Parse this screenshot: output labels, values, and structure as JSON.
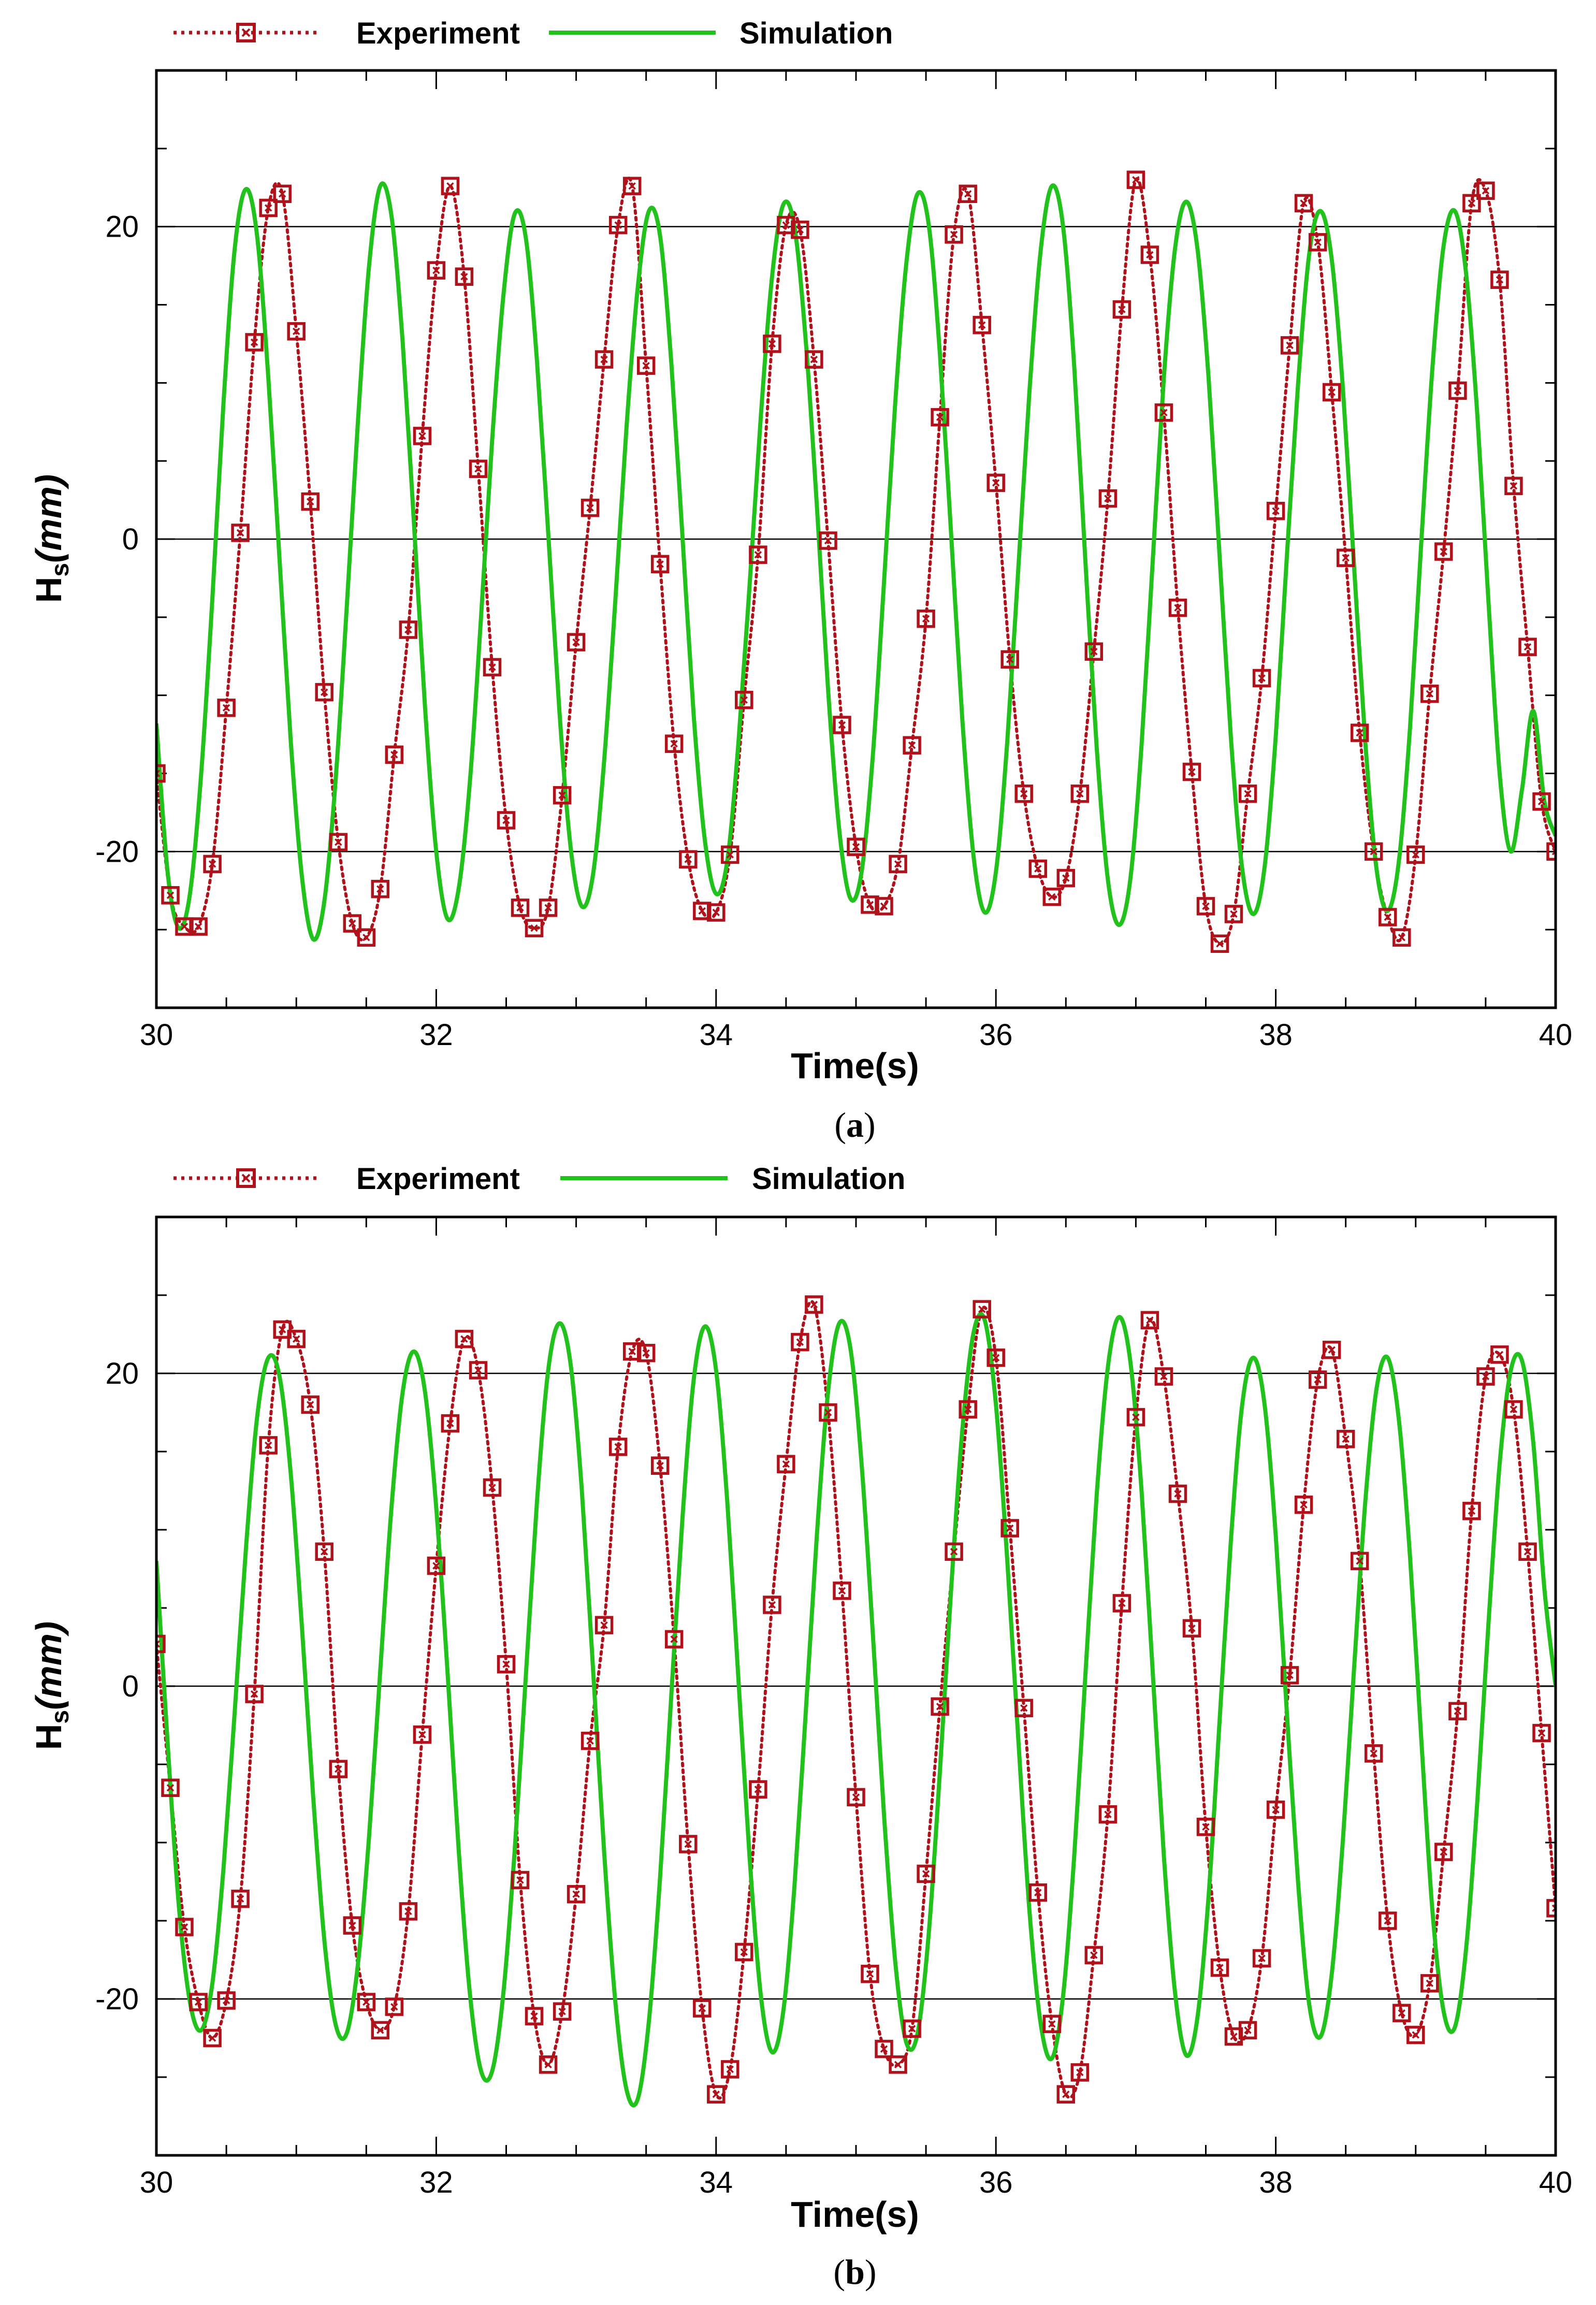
{
  "colors": {
    "experiment": "#b0121b",
    "simulation": "#22c21c",
    "axis": "#000000",
    "grid": "#000000"
  },
  "legend": {
    "experiment_label": "Experiment",
    "simulation_label": "Simulation",
    "experiment_marker": "open-square-with-cross",
    "experiment_line": "dotted",
    "simulation_line": "solid"
  },
  "chart_data": [
    {
      "type": "line",
      "caption_letter": "a",
      "xlabel": "Time(s)",
      "ylabel_main": "H",
      "ylabel_sub": "s",
      "ylabel_rest": "(mm)",
      "xlim": [
        30,
        40
      ],
      "ylim": [
        -30,
        30
      ],
      "xticks": [
        30,
        32,
        34,
        36,
        38,
        40
      ],
      "yticks": [
        -20,
        0,
        20
      ],
      "xtick_labels": [
        "30",
        "32",
        "34",
        "36",
        "38",
        "40"
      ],
      "ytick_labels": [
        "-20",
        "0",
        "20"
      ],
      "grid_y": [
        -20,
        0,
        20
      ],
      "series": [
        {
          "name": "Experiment",
          "style": "dotted-markers",
          "x": [
            30.0,
            30.1,
            30.2,
            30.3,
            30.4,
            30.5,
            30.6,
            30.7,
            30.8,
            30.9,
            31.0,
            31.1,
            31.2,
            31.3,
            31.4,
            31.5,
            31.6,
            31.7,
            31.8,
            31.9,
            32.0,
            32.1,
            32.2,
            32.3,
            32.4,
            32.5,
            32.6,
            32.7,
            32.8,
            32.9,
            33.0,
            33.1,
            33.2,
            33.3,
            33.4,
            33.5,
            33.6,
            33.7,
            33.8,
            33.9,
            34.0,
            34.1,
            34.2,
            34.3,
            34.4,
            34.5,
            34.6,
            34.7,
            34.8,
            34.9,
            35.0,
            35.1,
            35.2,
            35.3,
            35.4,
            35.5,
            35.6,
            35.7,
            35.8,
            35.9,
            36.0,
            36.1,
            36.2,
            36.3,
            36.4,
            36.5,
            36.6,
            36.7,
            36.8,
            36.9,
            37.0,
            37.1,
            37.2,
            37.3,
            37.4,
            37.5,
            37.6,
            37.7,
            37.8,
            37.9,
            38.0,
            38.1,
            38.2,
            38.3,
            38.4,
            38.5,
            38.6,
            38.7,
            38.8,
            38.9,
            39.0,
            39.1,
            39.2,
            39.3,
            39.4,
            39.5,
            39.6,
            39.7,
            39.8,
            39.9,
            40.0
          ],
          "y": [
            -15,
            -22.8,
            -24.8,
            -24.8,
            -20.8,
            -10.8,
            0.4,
            12.6,
            21.2,
            22.1,
            13.3,
            2.4,
            -9.8,
            -19.4,
            -24.6,
            -25.5,
            -22.4,
            -13.8,
            -5.8,
            6.6,
            17.2,
            22.6,
            16.8,
            4.5,
            -8.2,
            -18,
            -23.6,
            -24.9,
            -23.6,
            -16.4,
            -6.6,
            2,
            11.5,
            20.1,
            22.6,
            11.1,
            -1.6,
            -13.1,
            -20.5,
            -23.8,
            -23.9,
            -20.2,
            -10.3,
            -1,
            12.5,
            20.1,
            19.8,
            11.5,
            -0.1,
            -11.9,
            -19.7,
            -23.4,
            -23.5,
            -20.8,
            -13.2,
            -5.1,
            7.8,
            19.5,
            22.1,
            13.7,
            3.6,
            -7.7,
            -16.3,
            -21.1,
            -22.9,
            -21.7,
            -16.3,
            -7.2,
            2.6,
            14.7,
            23,
            18.2,
            8.1,
            -4.4,
            -14.9,
            -23.5,
            -25.9,
            -24,
            -16.3,
            -8.9,
            1.8,
            12.4,
            21.5,
            19,
            9.4,
            -1.2,
            -12.4,
            -20,
            -24.2,
            -25.5,
            -20.2,
            -9.9,
            -0.8,
            9.5,
            21.5,
            22.3,
            16.6,
            3.4,
            -6.9,
            -16.8,
            -20
          ]
        },
        {
          "name": "Simulation",
          "style": "solid",
          "x": [
            30.0,
            30.08,
            30.16,
            30.24,
            30.32,
            30.4,
            30.48,
            30.56,
            30.64,
            30.72,
            30.8,
            30.88,
            30.96,
            31.04,
            31.12,
            31.2,
            31.28,
            31.36,
            31.44,
            31.52,
            31.6,
            31.68,
            31.76,
            31.84,
            31.92,
            32.0,
            32.08,
            32.16,
            32.24,
            32.32,
            32.4,
            32.48,
            32.56,
            32.64,
            32.72,
            32.8,
            32.88,
            32.96,
            33.04,
            33.12,
            33.2,
            33.28,
            33.36,
            33.44,
            33.52,
            33.6,
            33.68,
            33.76,
            33.84,
            33.92,
            34.0,
            34.08,
            34.16,
            34.24,
            34.32,
            34.4,
            34.48,
            34.56,
            34.64,
            34.72,
            34.8,
            34.88,
            34.96,
            35.04,
            35.12,
            35.2,
            35.28,
            35.36,
            35.44,
            35.52,
            35.6,
            35.68,
            35.76,
            35.84,
            35.92,
            36.0,
            36.08,
            36.16,
            36.24,
            36.32,
            36.4,
            36.48,
            36.56,
            36.64,
            36.72,
            36.8,
            36.88,
            36.96,
            37.04,
            37.12,
            37.2,
            37.28,
            37.36,
            37.44,
            37.52,
            37.6,
            37.68,
            37.76,
            37.84,
            37.92,
            38.0,
            38.08,
            38.16,
            38.24,
            38.32,
            38.4,
            38.48,
            38.56,
            38.64,
            38.72,
            38.8,
            38.88,
            38.96,
            39.04,
            39.12,
            39.2,
            39.28,
            39.36,
            39.44,
            39.52,
            39.6,
            39.68,
            39.76,
            39.84,
            39.92,
            40.0
          ],
          "y": [
            -11.8,
            -21.3,
            -24.9,
            -22.7,
            -15.0,
            -3.8,
            8.8,
            18.6,
            22.4,
            19.4,
            10.3,
            -1.3,
            -12.9,
            -21.6,
            -25.6,
            -23.2,
            -15.5,
            -4.4,
            7.5,
            17.5,
            22.6,
            20.7,
            12.6,
            1.1,
            -10.8,
            -20.0,
            -24.3,
            -22.4,
            -15.6,
            -5.0,
            6.4,
            15.6,
            20.8,
            19.3,
            11.4,
            0.4,
            -11.0,
            -19.7,
            -23.5,
            -21.5,
            -14.2,
            -3.9,
            7.2,
            16.1,
            21.0,
            19.4,
            11.3,
            0.1,
            -11.3,
            -19.3,
            -22.7,
            -20.6,
            -13.0,
            -2.9,
            7.9,
            16.8,
            21.4,
            20.0,
            12.8,
            2.2,
            -9.6,
            -18.6,
            -23.0,
            -21.3,
            -13.9,
            -2.8,
            8.7,
            17.7,
            22.1,
            20.1,
            11.8,
            0.3,
            -11.6,
            -20.3,
            -23.9,
            -21.3,
            -13.1,
            -1.9,
            9.5,
            18.5,
            22.6,
            20.0,
            11.0,
            -1.5,
            -13.3,
            -21.8,
            -24.7,
            -21.8,
            -13.3,
            -1.5,
            10.3,
            18.6,
            21.6,
            18.6,
            10.3,
            -1.3,
            -12.8,
            -21.1,
            -24.0,
            -21.0,
            -12.6,
            -1.0,
            10.0,
            18.3,
            21.0,
            17.9,
            9.6,
            -1.8,
            -13.0,
            -21.1,
            -23.8,
            -20.6,
            -12.0,
            -0.2,
            11.0,
            18.8,
            21.0,
            17.0,
            8.0,
            -4.0,
            -15.0,
            -20.0,
            -16.0,
            -11.0,
            -16.8,
            -19.0
          ]
        }
      ]
    },
    {
      "type": "line",
      "caption_letter": "b",
      "xlabel": "Time(s)",
      "ylabel_main": "H",
      "ylabel_sub": "s",
      "ylabel_rest": "(mm)",
      "xlim": [
        30,
        40
      ],
      "ylim": [
        -30,
        30
      ],
      "xticks": [
        30,
        32,
        34,
        36,
        38,
        40
      ],
      "yticks": [
        -20,
        0,
        20
      ],
      "xtick_labels": [
        "30",
        "32",
        "34",
        "36",
        "38",
        "40"
      ],
      "ytick_labels": [
        "-20",
        "0",
        "20"
      ],
      "grid_y": [
        -20,
        0,
        20
      ],
      "series": [
        {
          "name": "Experiment",
          "style": "dotted-markers",
          "x": [
            30.0,
            30.1,
            30.2,
            30.3,
            30.4,
            30.5,
            30.6,
            30.7,
            30.8,
            30.9,
            31.0,
            31.1,
            31.2,
            31.3,
            31.4,
            31.5,
            31.6,
            31.7,
            31.8,
            31.9,
            32.0,
            32.1,
            32.2,
            32.3,
            32.4,
            32.5,
            32.6,
            32.7,
            32.8,
            32.9,
            33.0,
            33.1,
            33.2,
            33.3,
            33.4,
            33.5,
            33.6,
            33.7,
            33.8,
            33.9,
            34.0,
            34.1,
            34.2,
            34.3,
            34.4,
            34.5,
            34.6,
            34.7,
            34.8,
            34.9,
            35.0,
            35.1,
            35.2,
            35.3,
            35.4,
            35.5,
            35.6,
            35.7,
            35.8,
            35.9,
            36.0,
            36.1,
            36.2,
            36.3,
            36.4,
            36.5,
            36.6,
            36.7,
            36.8,
            36.9,
            37.0,
            37.1,
            37.2,
            37.3,
            37.4,
            37.5,
            37.6,
            37.7,
            37.8,
            37.9,
            38.0,
            38.1,
            38.2,
            38.3,
            38.4,
            38.5,
            38.6,
            38.7,
            38.8,
            38.9,
            39.0,
            39.1,
            39.2,
            39.3,
            39.4,
            39.5,
            39.6,
            39.7,
            39.8,
            39.9,
            40.0
          ],
          "y": [
            2.7,
            -6.5,
            -15.4,
            -20.2,
            -22.5,
            -20.1,
            -13.6,
            -0.5,
            15.4,
            22.8,
            22.2,
            18,
            8.6,
            -5.3,
            -15.3,
            -20.2,
            -22,
            -20.5,
            -14.4,
            -3.1,
            7.7,
            16.8,
            22.2,
            20.2,
            12.7,
            1.4,
            -12.4,
            -21.1,
            -24.2,
            -20.8,
            -13.3,
            -3.5,
            3.9,
            15.3,
            21.4,
            21.3,
            14.1,
            3,
            -10.1,
            -20.6,
            -26.1,
            -24.5,
            -17,
            -6.6,
            5.2,
            14.2,
            22,
            24.4,
            17.5,
            6.1,
            -7.1,
            -18.4,
            -23.2,
            -24.2,
            -21.9,
            -12,
            -1.3,
            8.6,
            17.7,
            24.1,
            21,
            10.1,
            -1.4,
            -13.2,
            -21.6,
            -26.1,
            -24.7,
            -17.2,
            -8.2,
            5.3,
            17.2,
            23.4,
            19.8,
            12.3,
            3.7,
            -9,
            -18,
            -22.4,
            -22,
            -17.4,
            -7.9,
            0.7,
            11.6,
            19.6,
            21.5,
            15.8,
            8,
            -4.3,
            -15,
            -20.9,
            -22.3,
            -19,
            -10.6,
            -1.6,
            11.2,
            19.8,
            21.2,
            17.7,
            8.6,
            -3,
            -14.2
          ]
        },
        {
          "name": "Simulation",
          "style": "solid",
          "x": [
            30.0,
            30.08,
            30.16,
            30.24,
            30.32,
            30.4,
            30.48,
            30.56,
            30.64,
            30.72,
            30.8,
            30.88,
            30.96,
            31.04,
            31.12,
            31.2,
            31.28,
            31.36,
            31.44,
            31.52,
            31.6,
            31.68,
            31.76,
            31.84,
            31.92,
            32.0,
            32.08,
            32.16,
            32.24,
            32.32,
            32.4,
            32.48,
            32.56,
            32.64,
            32.72,
            32.8,
            32.88,
            32.96,
            33.04,
            33.12,
            33.2,
            33.28,
            33.36,
            33.44,
            33.52,
            33.6,
            33.68,
            33.76,
            33.84,
            33.92,
            34.0,
            34.08,
            34.16,
            34.24,
            34.32,
            34.4,
            34.48,
            34.56,
            34.64,
            34.72,
            34.8,
            34.88,
            34.96,
            35.04,
            35.12,
            35.2,
            35.28,
            35.36,
            35.44,
            35.52,
            35.6,
            35.68,
            35.76,
            35.84,
            35.92,
            36.0,
            36.08,
            36.16,
            36.24,
            36.32,
            36.4,
            36.48,
            36.56,
            36.64,
            36.72,
            36.8,
            36.88,
            36.96,
            37.04,
            37.12,
            37.2,
            37.28,
            37.36,
            37.44,
            37.52,
            37.6,
            37.68,
            37.76,
            37.84,
            37.92,
            38.0,
            38.08,
            38.16,
            38.24,
            38.32,
            38.4,
            38.48,
            38.56,
            38.64,
            38.72,
            38.8,
            38.88,
            38.96,
            39.04,
            39.12,
            39.2,
            39.28,
            39.36,
            39.44,
            39.52,
            39.6,
            39.68,
            39.76,
            39.84,
            39.92,
            40.0
          ],
          "y": [
            8.0,
            -3.6,
            -14.0,
            -20.2,
            -22.0,
            -19.0,
            -11.6,
            -1.6,
            8.8,
            17.2,
            21.0,
            19.8,
            13.6,
            3.8,
            -7.0,
            -16.2,
            -21.6,
            -22.2,
            -17.8,
            -9.6,
            1.0,
            11.4,
            18.8,
            21.4,
            18.8,
            11.4,
            1.0,
            -10.4,
            -19.6,
            -24.6,
            -24.6,
            -19.6,
            -10.6,
            0.6,
            11.8,
            20.2,
            23.2,
            20.6,
            12.6,
            1.2,
            -10.6,
            -20.2,
            -25.8,
            -26.4,
            -21.4,
            -12.2,
            -0.6,
            10.8,
            19.6,
            23.0,
            20.2,
            11.8,
            0.4,
            -11.0,
            -19.8,
            -23.4,
            -20.8,
            -12.8,
            -1.8,
            9.6,
            18.8,
            23.2,
            21.6,
            14.2,
            3.4,
            -8.2,
            -17.6,
            -22.8,
            -22.2,
            -15.8,
            -5.4,
            6.2,
            16.4,
            22.6,
            23.4,
            18.0,
            8.2,
            -3.4,
            -14.4,
            -21.6,
            -23.8,
            -19.8,
            -10.8,
            0.8,
            12.2,
            20.4,
            23.6,
            20.8,
            12.6,
            1.0,
            -10.8,
            -19.6,
            -23.6,
            -21.2,
            -13.4,
            -2.0,
            9.4,
            18.0,
            21.0,
            18.0,
            9.6,
            -1.8,
            -12.6,
            -20.4,
            -22.4,
            -18.4,
            -9.8,
            1.2,
            11.8,
            19.0,
            21.0,
            17.0,
            8.2,
            -3.4,
            -14.4,
            -20.8,
            -21.8,
            -16.8,
            -7.4,
            4.0,
            14.2,
            20.2,
            20.8,
            15.6,
            6.2,
            0.0
          ]
        }
      ]
    }
  ]
}
